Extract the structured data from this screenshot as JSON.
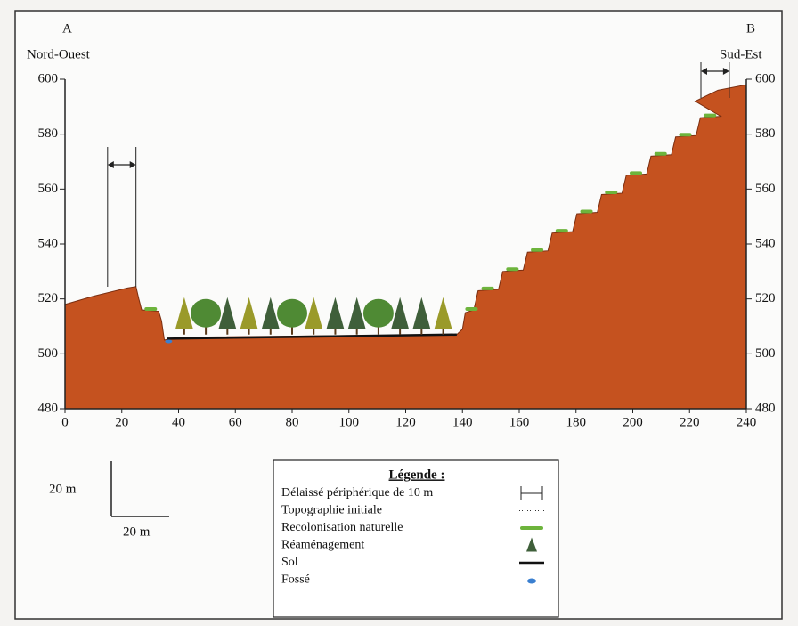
{
  "labels": {
    "a": "A",
    "b": "B",
    "left": "Nord-Ouest",
    "right": "Sud-Est"
  },
  "x_axis": {
    "ticks": [
      "0",
      "20",
      "40",
      "60",
      "80",
      "100",
      "120",
      "140",
      "160",
      "180",
      "200",
      "220",
      "240"
    ]
  },
  "y_axis": {
    "ticks": [
      "480",
      "500",
      "520",
      "540",
      "560",
      "580",
      "600"
    ]
  },
  "scale": {
    "vertical": "20 m",
    "horizontal": "20 m"
  },
  "legend": {
    "title": "Légende :",
    "items": [
      "Délaissé périphérique de 10 m",
      "Topographie initiale",
      "Recolonisation naturelle",
      "Réaménagement",
      "Sol",
      "Fossé"
    ]
  }
}
